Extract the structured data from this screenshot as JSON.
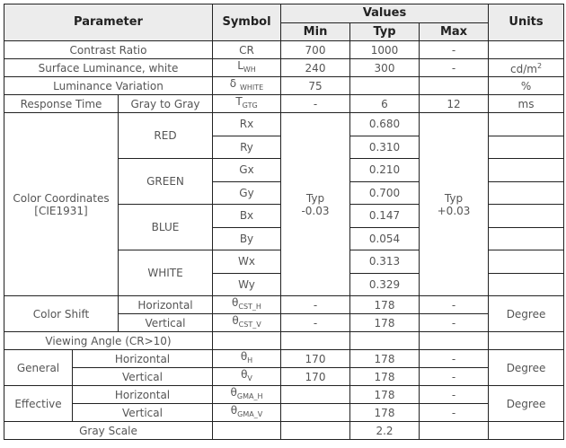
{
  "header": {
    "parameter": "Parameter",
    "symbol": "Symbol",
    "values": "Values",
    "min": "Min",
    "typ": "Typ",
    "max": "Max",
    "units": "Units"
  },
  "rows": {
    "contrast": {
      "label": "Contrast Ratio",
      "symbol": "CR",
      "min": "700",
      "typ": "1000",
      "max": "-",
      "units": ""
    },
    "luminance": {
      "label": "Surface Luminance, white",
      "symbol": "L",
      "symbol_sub": "WH",
      "min": "240",
      "typ": "300",
      "max": "-",
      "units": "cd/m",
      "units_sup": "2"
    },
    "variation": {
      "label": "Luminance Variation",
      "symbol": "δ",
      "symbol_sub": "WHITE",
      "min": "75",
      "typ": "",
      "max": "",
      "units": "%"
    },
    "response": {
      "label": "Response Time",
      "sublabel": "Gray to Gray",
      "symbol": "T",
      "symbol_sub": "GTG",
      "min": "-",
      "typ": "6",
      "max": "12",
      "units": "ms"
    },
    "color": {
      "label_line1": "Color Coordinates",
      "label_line2": "[CIE1931]",
      "min_line1": "Typ",
      "min_line2": "-0.03",
      "max_line1": "Typ",
      "max_line2": "+0.03",
      "groups": [
        {
          "name": "RED",
          "items": [
            {
              "symbol": "Rx",
              "typ": "0.680"
            },
            {
              "symbol": "Ry",
              "typ": "0.310"
            }
          ]
        },
        {
          "name": "GREEN",
          "items": [
            {
              "symbol": "Gx",
              "typ": "0.210"
            },
            {
              "symbol": "Gy",
              "typ": "0.700"
            }
          ]
        },
        {
          "name": "BLUE",
          "items": [
            {
              "symbol": "Bx",
              "typ": "0.147"
            },
            {
              "symbol": "By",
              "typ": "0.054"
            }
          ]
        },
        {
          "name": "WHITE",
          "items": [
            {
              "symbol": "Wx",
              "typ": "0.313"
            },
            {
              "symbol": "Wy",
              "typ": "0.329"
            }
          ]
        }
      ]
    },
    "color_shift": {
      "label": "Color Shift",
      "units": "Degree",
      "items": [
        {
          "label": "Horizontal",
          "symbol": "θ",
          "symbol_sub": "CST_H",
          "min": "-",
          "typ": "178",
          "max": "-"
        },
        {
          "label": "Vertical",
          "symbol": "θ",
          "symbol_sub": "CST_V",
          "min": "-",
          "typ": "178",
          "max": "-"
        }
      ]
    },
    "viewing_angle": {
      "label": "Viewing Angle (CR>10)"
    },
    "general": {
      "label": "General",
      "units": "Degree",
      "items": [
        {
          "label": "Horizontal",
          "symbol": "θ",
          "symbol_sub": "H",
          "min": "170",
          "typ": "178",
          "max": "-"
        },
        {
          "label": "Vertical",
          "symbol": "θ",
          "symbol_sub": "V",
          "min": "170",
          "typ": "178",
          "max": "-"
        }
      ]
    },
    "effective": {
      "label": "Effective",
      "units": "Degree",
      "items": [
        {
          "label": "Horizontal",
          "symbol": "θ",
          "symbol_sub": "GMA_H",
          "min": "",
          "typ": "178",
          "max": "-"
        },
        {
          "label": "Vertical",
          "symbol": "θ",
          "symbol_sub": "GMA_V",
          "min": "",
          "typ": "178",
          "max": "-"
        }
      ]
    },
    "gray_scale": {
      "label": "Gray Scale",
      "typ": "2.2"
    }
  }
}
